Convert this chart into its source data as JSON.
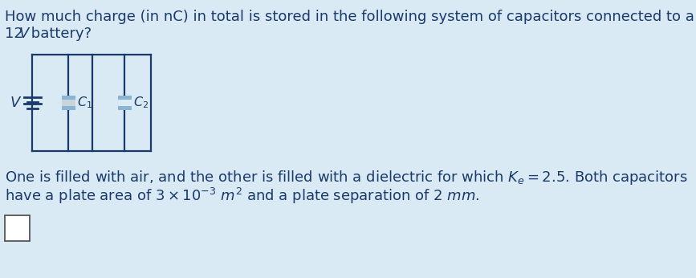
{
  "bg_color": "#daeaf5",
  "text_color": "#1a3a6b",
  "title_line1": "How much charge (in nC) in total is stored in the following system of capacitors connected to a",
  "title_line2": "12 V  battery?",
  "desc_line1": "One is filled with air, and the other is filled with a dielectric for which $K_e = 2.5$. Both capacitors",
  "desc_line2": "have a plate area of $3 \\times 10^{-3}$ $m^2$ and a plate separation of $2$ $mm$.",
  "circuit_color": "#1a3a6b",
  "capacitor_fill_blue": "#8ab4d4",
  "capacitor_fill_gray": "#c8d4dc",
  "font_size": 13.0,
  "circuit_lw": 1.6
}
